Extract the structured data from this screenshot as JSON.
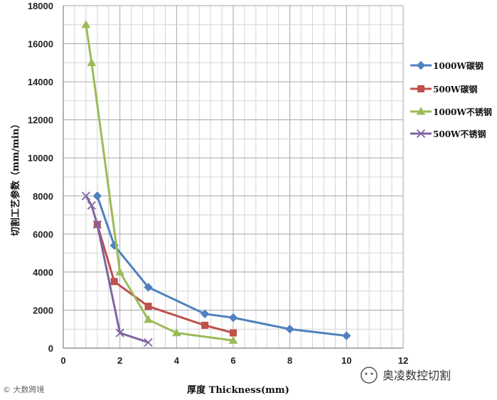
{
  "chart_data": {
    "type": "line",
    "xlabel": "厚度 Thickness(mm)",
    "ylabel": "切割工艺参数（mm/min）",
    "xlim": [
      0,
      12
    ],
    "ylim": [
      0,
      18000
    ],
    "x_ticks": [
      "0",
      "2",
      "4",
      "6",
      "8",
      "10",
      "12"
    ],
    "y_ticks": [
      "0",
      "2000",
      "4000",
      "6000",
      "8000",
      "10000",
      "12000",
      "14000",
      "16000",
      "18000"
    ],
    "grid": true,
    "legend_position": "right",
    "series": [
      {
        "name": "1000W碳钢",
        "color": "#4f81bd",
        "marker": "diamond",
        "x": [
          1.2,
          1.8,
          3,
          5,
          6,
          8,
          10
        ],
        "y": [
          8000,
          5400,
          3200,
          1800,
          1600,
          1000,
          650
        ]
      },
      {
        "name": "500W碳钢",
        "color": "#c0504d",
        "marker": "square",
        "x": [
          1.2,
          1.8,
          3,
          5,
          6
        ],
        "y": [
          6500,
          3500,
          2200,
          1200,
          800
        ]
      },
      {
        "name": "1000W不锈钢",
        "color": "#9bbb59",
        "marker": "triangle",
        "x": [
          0.8,
          1,
          2,
          3,
          4,
          6
        ],
        "y": [
          17000,
          15000,
          4000,
          1500,
          800,
          400
        ]
      },
      {
        "name": "500W不锈钢",
        "color": "#8064a2",
        "marker": "cross",
        "x": [
          0.8,
          1,
          1.2,
          2,
          3
        ],
        "y": [
          8000,
          7500,
          6500,
          800,
          300
        ]
      }
    ]
  },
  "watermark": {
    "brand": "奥凌数控切割",
    "corner": "© 大数跨境"
  }
}
